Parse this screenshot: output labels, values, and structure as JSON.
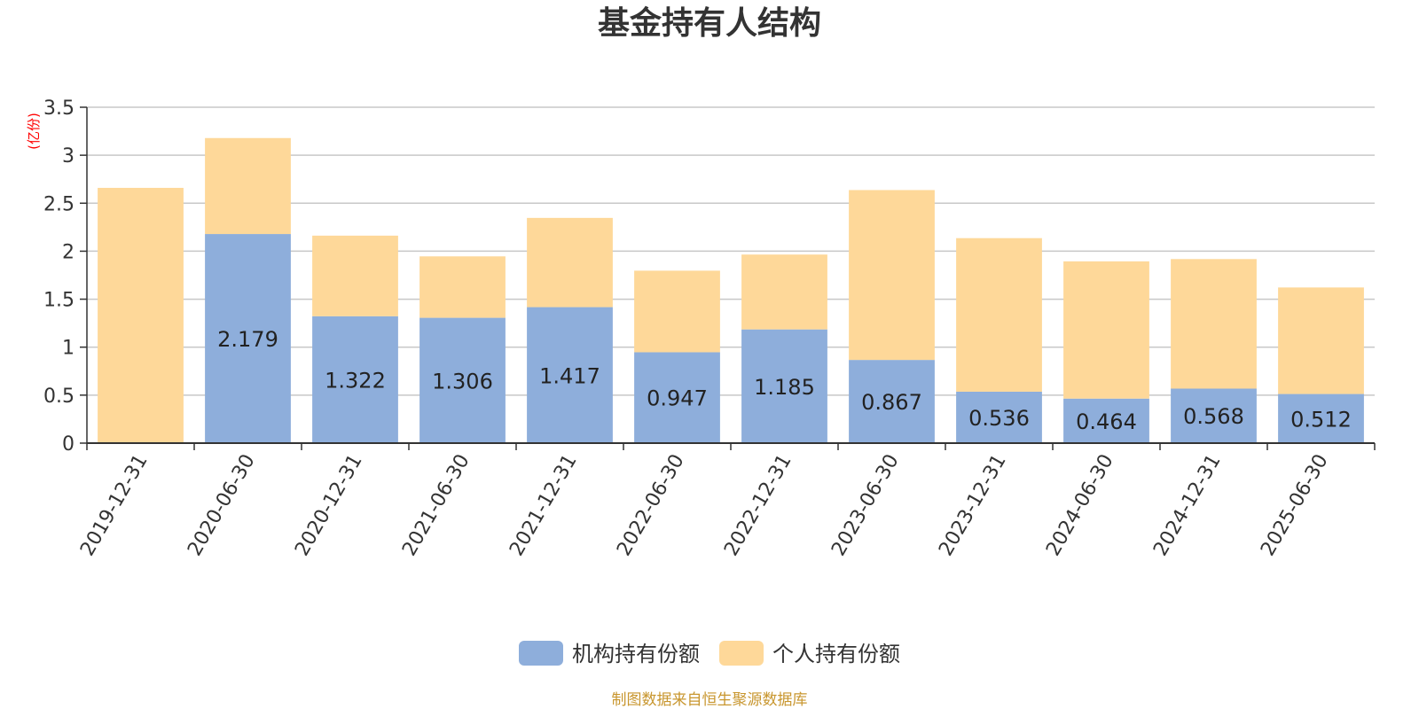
{
  "chart_data": {
    "type": "bar",
    "stacked": true,
    "title": "基金持有人结构",
    "ylabel": "(亿份)",
    "ylim": [
      0,
      3.5
    ],
    "yticks": [
      0,
      0.5,
      1,
      1.5,
      2,
      2.5,
      3,
      3.5
    ],
    "ytick_labels": [
      "0",
      "0.5",
      "1",
      "1.5",
      "2",
      "2.5",
      "3",
      "3.5"
    ],
    "grid": true,
    "legend_position": "bottom-center",
    "categories": [
      "2019-12-31",
      "2020-06-30",
      "2020-12-31",
      "2021-06-30",
      "2021-12-31",
      "2022-06-30",
      "2022-12-31",
      "2023-06-30",
      "2023-12-31",
      "2024-06-30",
      "2024-12-31",
      "2025-06-30"
    ],
    "series": [
      {
        "name": "机构持有份额",
        "color": "#8eaedb",
        "values": [
          0,
          2.179,
          1.322,
          1.306,
          1.417,
          0.947,
          1.185,
          0.867,
          0.536,
          0.464,
          0.568,
          0.512
        ],
        "data_labels": [
          "",
          "2.179",
          "1.322",
          "1.306",
          "1.417",
          "0.947",
          "1.185",
          "0.867",
          "0.536",
          "0.464",
          "0.568",
          "0.512"
        ]
      },
      {
        "name": "个人持有份额",
        "color": "#fed899",
        "values": [
          2.66,
          1.0,
          0.84,
          0.64,
          0.93,
          0.85,
          0.78,
          1.77,
          1.6,
          1.43,
          1.35,
          1.11
        ]
      }
    ]
  },
  "footer": {
    "source": "制图数据来自恒生聚源数据库"
  },
  "colors": {
    "axis": "#333333",
    "grid": "#c8c8c8",
    "ylabel": "#ff0000",
    "label": "#222222"
  }
}
